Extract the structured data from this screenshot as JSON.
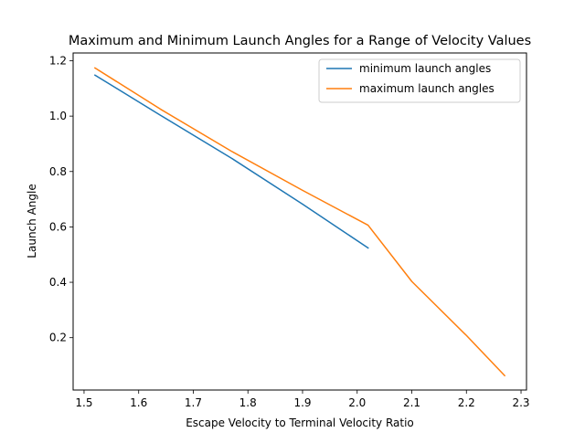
{
  "chart_data": {
    "type": "line",
    "title": "Maximum and Minimum Launch Angles for a Range of Velocity Values",
    "xlabel": "Escape Velocity to Terminal Velocity Ratio",
    "ylabel": "Launch Angle",
    "xlim": [
      1.48,
      2.31
    ],
    "ylim": [
      0.011,
      1.228
    ],
    "xticks": [
      "1.5",
      "1.6",
      "1.7",
      "1.8",
      "1.9",
      "2.0",
      "2.1",
      "2.2",
      "2.3"
    ],
    "yticks": [
      "0.2",
      "0.4",
      "0.6",
      "0.8",
      "1.0",
      "1.2"
    ],
    "grid": false,
    "legend_position": "top-right",
    "series": [
      {
        "name": "minimum launch angles",
        "color": "#1f77b4",
        "x": [
          1.52,
          1.64,
          1.77,
          1.9,
          2.02
        ],
        "y": [
          1.148,
          1.003,
          0.848,
          0.682,
          0.524
        ]
      },
      {
        "name": "maximum launch angles",
        "color": "#ff7f0e",
        "x": [
          1.52,
          1.64,
          1.77,
          1.9,
          2.02,
          2.1,
          2.2,
          2.27
        ],
        "y": [
          1.174,
          1.025,
          0.873,
          0.732,
          0.606,
          0.403,
          0.208,
          0.063
        ]
      }
    ]
  }
}
